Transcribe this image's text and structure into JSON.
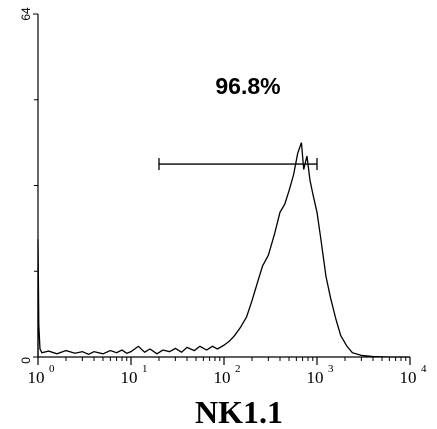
{
  "chart_data": {
    "type": "histogram",
    "xlabel": "NK1.1",
    "x_scale": "log",
    "xlim": [
      1,
      10000
    ],
    "ylim": [
      0,
      64
    ],
    "y_ticks": [
      {
        "label": "0",
        "value": 0
      },
      {
        "label": "64",
        "value": 64
      }
    ],
    "x_ticks": [
      {
        "base": "10",
        "exp": "0",
        "value": 1
      },
      {
        "base": "10",
        "exp": "1",
        "value": 10
      },
      {
        "base": "10",
        "exp": "2",
        "value": 100
      },
      {
        "base": "10",
        "exp": "3",
        "value": 1000
      },
      {
        "base": "10",
        "exp": "4",
        "value": 10000
      }
    ],
    "gate": {
      "label": "96.8%",
      "x_range": [
        20,
        1000
      ],
      "y": 36
    },
    "histogram": [
      [
        1.0,
        22
      ],
      [
        1.02,
        6
      ],
      [
        1.05,
        1.5
      ],
      [
        1.1,
        0.8
      ],
      [
        1.3,
        1.1
      ],
      [
        1.6,
        0.6
      ],
      [
        2.0,
        1.2
      ],
      [
        2.5,
        0.7
      ],
      [
        3.0,
        1.0
      ],
      [
        3.5,
        0.5
      ],
      [
        4.0,
        1.0
      ],
      [
        5.0,
        0.6
      ],
      [
        6.0,
        1.2
      ],
      [
        7.0,
        0.8
      ],
      [
        8.0,
        1.3
      ],
      [
        9.0,
        0.7
      ],
      [
        10.0,
        1.0
      ],
      [
        12.0,
        2.0
      ],
      [
        14.0,
        0.9
      ],
      [
        16.0,
        1.5
      ],
      [
        19.0,
        0.6
      ],
      [
        22.0,
        1.3
      ],
      [
        26.0,
        1.0
      ],
      [
        30.0,
        1.6
      ],
      [
        35.0,
        0.9
      ],
      [
        40.0,
        1.8
      ],
      [
        48.0,
        1.2
      ],
      [
        55.0,
        2.0
      ],
      [
        65.0,
        1.3
      ],
      [
        75.0,
        2.0
      ],
      [
        85.0,
        1.5
      ],
      [
        100.0,
        2.2
      ],
      [
        115.0,
        3.0
      ],
      [
        130.0,
        4.0
      ],
      [
        150.0,
        5.5
      ],
      [
        175.0,
        7.5
      ],
      [
        200.0,
        10.5
      ],
      [
        230.0,
        14.0
      ],
      [
        260.0,
        17.0
      ],
      [
        300.0,
        19.0
      ],
      [
        350.0,
        23.0
      ],
      [
        400.0,
        27.0
      ],
      [
        450.0,
        28.5
      ],
      [
        500.0,
        31.0
      ],
      [
        560.0,
        34.0
      ],
      [
        620.0,
        38.0
      ],
      [
        680.0,
        40.0
      ],
      [
        720.0,
        35.0
      ],
      [
        780.0,
        37.5
      ],
      [
        840.0,
        33.0
      ],
      [
        900.0,
        30.5
      ],
      [
        1000.0,
        27.0
      ],
      [
        1100.0,
        22.0
      ],
      [
        1250.0,
        15.0
      ],
      [
        1400.0,
        11.0
      ],
      [
        1600.0,
        7.0
      ],
      [
        1800.0,
        4.0
      ],
      [
        2100.0,
        2.0
      ],
      [
        2400.0,
        0.8
      ],
      [
        3000.0,
        0.3
      ],
      [
        4000.0,
        0.1
      ],
      [
        6000.0,
        0.0
      ],
      [
        10000.0,
        0.0
      ]
    ]
  }
}
